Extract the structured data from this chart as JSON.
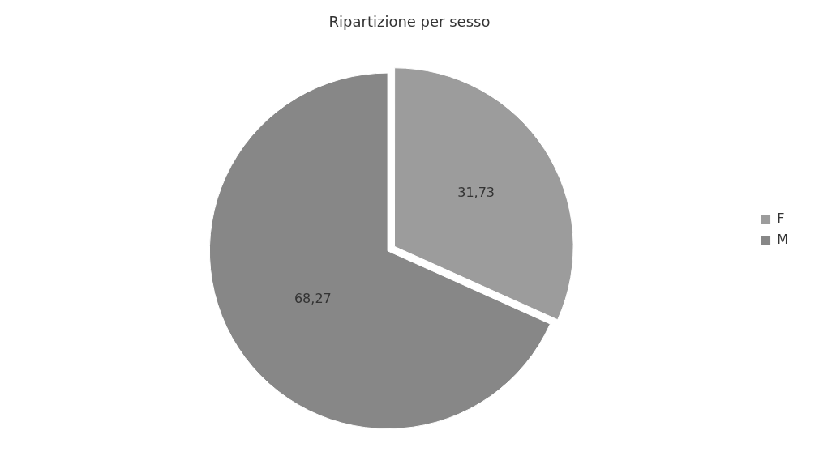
{
  "chart_data": {
    "type": "pie",
    "title": "Ripartizione per sesso",
    "categories": [
      "F",
      "M"
    ],
    "values": [
      31.73,
      68.27
    ],
    "colors": [
      "#9c9c9c",
      "#878787"
    ],
    "value_labels": [
      "31,73",
      "68,27"
    ],
    "legend": "right"
  }
}
